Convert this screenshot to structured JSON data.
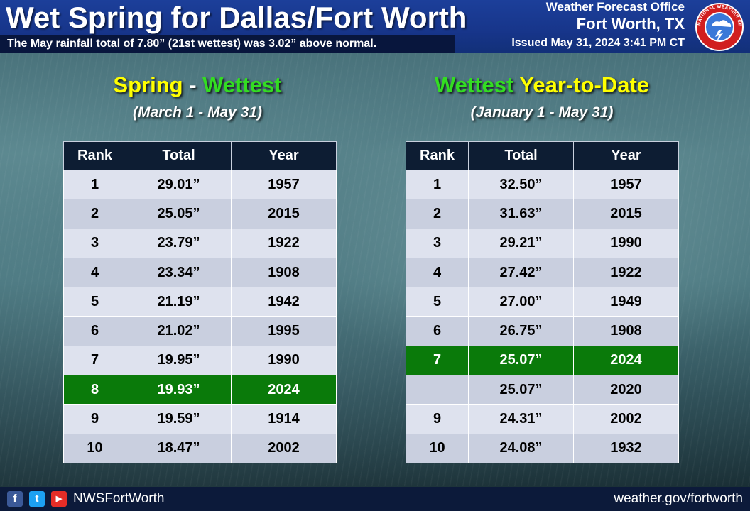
{
  "header": {
    "title": "Wet Spring for Dallas/Fort Worth",
    "subtitle": "The May rainfall  total of 7.80” (21st wettest) was 3.02” above normal.",
    "office_line1": "Weather Forecast Office",
    "office_line2": "Fort Worth, TX",
    "issued": "Issued May 31, 2024 3:41 PM CT",
    "logo_text": "NATIONAL WEATHER SERVICE"
  },
  "left_section": {
    "title_part1": "Spring",
    "title_sep": " - ",
    "title_part2": "Wettest",
    "subtitle": "(March 1 - May 31)",
    "columns": [
      "Rank",
      "Total",
      "Year"
    ],
    "rows": [
      {
        "rank": "1",
        "total": "29.01”",
        "year": "1957"
      },
      {
        "rank": "2",
        "total": "25.05”",
        "year": "2015"
      },
      {
        "rank": "3",
        "total": "23.79”",
        "year": "1922"
      },
      {
        "rank": "4",
        "total": "23.34”",
        "year": "1908"
      },
      {
        "rank": "5",
        "total": "21.19”",
        "year": "1942"
      },
      {
        "rank": "6",
        "total": "21.02”",
        "year": "1995"
      },
      {
        "rank": "7",
        "total": "19.95”",
        "year": "1990"
      },
      {
        "rank": "8",
        "total": "19.93”",
        "year": "2024"
      },
      {
        "rank": "9",
        "total": "19.59”",
        "year": "1914"
      },
      {
        "rank": "10",
        "total": "18.47”",
        "year": "2002"
      }
    ]
  },
  "right_section": {
    "title_part1": "Wettest",
    "title_sep": " ",
    "title_part2": "Year-to-Date",
    "subtitle": "(January 1 - May 31)",
    "columns": [
      "Rank",
      "Total",
      "Year"
    ],
    "rows": [
      {
        "rank": "1",
        "total": "32.50”",
        "year": "1957"
      },
      {
        "rank": "2",
        "total": "31.63”",
        "year": "2015"
      },
      {
        "rank": "3",
        "total": "29.21”",
        "year": "1990"
      },
      {
        "rank": "4",
        "total": "27.42”",
        "year": "1922"
      },
      {
        "rank": "5",
        "total": "27.00”",
        "year": "1949"
      },
      {
        "rank": "6",
        "total": "26.75”",
        "year": "1908"
      },
      {
        "rank": "7",
        "total": "25.07”",
        "year": "2024"
      },
      {
        "rank": "",
        "total": "25.07”",
        "year": "2020"
      },
      {
        "rank": "9",
        "total": "24.31”",
        "year": "2002"
      },
      {
        "rank": "10",
        "total": "24.08”",
        "year": "1932"
      }
    ]
  },
  "footer": {
    "social_icons": [
      "facebook-icon",
      "twitter-icon",
      "youtube-icon"
    ],
    "facebook_glyph": "f",
    "twitter_glyph": "t",
    "youtube_glyph": "▶",
    "handle": "NWSFortWorth",
    "website": "weather.gov/fortworth"
  },
  "colors": {
    "header_blue": "#17358a",
    "highlight_green": "#0a7a0a",
    "title_yellow": "#ffff00",
    "title_green": "#33dd22"
  }
}
